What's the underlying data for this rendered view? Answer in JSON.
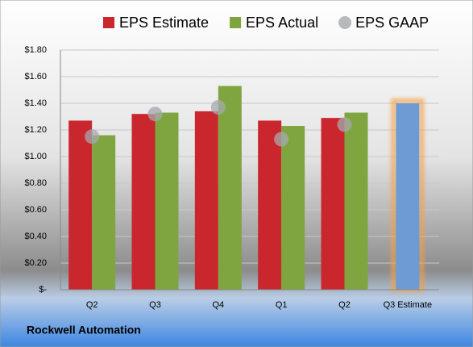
{
  "chart_data": {
    "type": "bar",
    "footer": "Rockwell Automation",
    "categories": [
      "Q2",
      "Q3",
      "Q4",
      "Q1",
      "Q2",
      "Q3 Estimate"
    ],
    "series": [
      {
        "name": "EPS Estimate",
        "type": "bar",
        "color": "#c9272d",
        "values": [
          1.27,
          1.32,
          1.34,
          1.27,
          1.29,
          null
        ]
      },
      {
        "name": "EPS Actual",
        "type": "bar",
        "color": "#7fa540",
        "values": [
          1.16,
          1.33,
          1.53,
          1.23,
          1.33,
          null
        ]
      },
      {
        "name": "EPS GAAP",
        "type": "scatter",
        "color": "#a6a9ad",
        "values": [
          1.15,
          1.32,
          1.37,
          1.13,
          1.24,
          null
        ]
      },
      {
        "type": "bar",
        "color": "#6f9bd4",
        "highlight": "#f5a142",
        "values": [
          null,
          null,
          null,
          null,
          null,
          1.4
        ]
      }
    ],
    "ylim": [
      0,
      1.8
    ],
    "yticks": [
      {
        "value": 0,
        "label": "$-"
      },
      {
        "value": 0.2,
        "label": "$0.20"
      },
      {
        "value": 0.4,
        "label": "$0.40"
      },
      {
        "value": 0.6,
        "label": "$0.60"
      },
      {
        "value": 0.8,
        "label": "$0.80"
      },
      {
        "value": 1.0,
        "label": "$1.00"
      },
      {
        "value": 1.2,
        "label": "$1.20"
      },
      {
        "value": 1.4,
        "label": "$1.40"
      },
      {
        "value": 1.6,
        "label": "$1.60"
      },
      {
        "value": 1.8,
        "label": "$1.80"
      }
    ],
    "grid": true
  }
}
